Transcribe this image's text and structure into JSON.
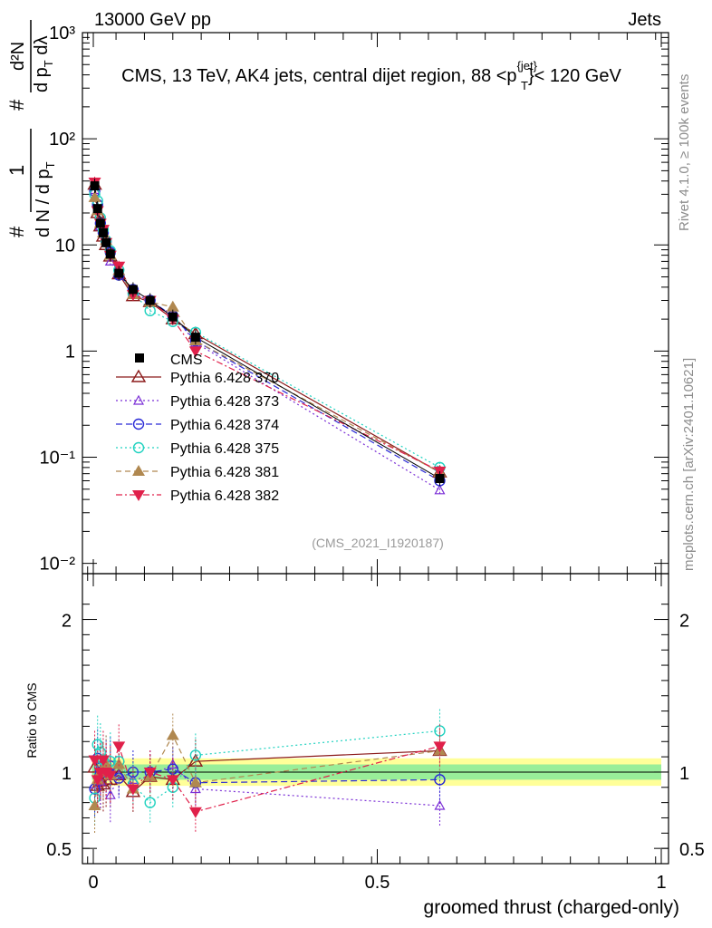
{
  "header": {
    "left": "13000 GeV pp",
    "right": "Jets"
  },
  "title": {
    "main": "CMS, 13 TeV, AK4 jets, central dijet region, 88 <p",
    "sup": "{jet}",
    "sub": "T",
    "tail": "}< 120 GeV"
  },
  "ylabel": {
    "num1": "1",
    "den1": "d N / d p",
    "den1sub": "T",
    "prefix": "#",
    "num2": "d²N",
    "den2": "d p",
    "den2sub": "T",
    "den2tail": " dλ",
    "hash2": "#"
  },
  "side": {
    "rivet": "Rivet 4.1.0, ≥ 100k events",
    "mcplots": "mcplots.cern.ch [arXiv:2401.10621]"
  },
  "analysis_ref": "(CMS_2021_I1920187)",
  "ratio_label": "Ratio to CMS",
  "xlabel": "groomed thrust (charged-only)",
  "chart_data": {
    "type": "scatter",
    "x": [
      0.0025,
      0.0075,
      0.0125,
      0.0175,
      0.0225,
      0.03,
      0.045,
      0.07,
      0.1,
      0.14,
      0.18,
      0.61
    ],
    "main": {
      "yscale": "log",
      "ylim": [
        0.008,
        1000
      ],
      "ytick_labels": [
        "10⁻²",
        "10⁻¹",
        "1",
        "10",
        "10²",
        "10³"
      ],
      "ytick_values": [
        0.01,
        0.1,
        1,
        10,
        100,
        1000
      ],
      "data": {
        "name": "CMS",
        "values": [
          36,
          22,
          16,
          13,
          10.5,
          8.2,
          5.4,
          3.8,
          3.0,
          2.1,
          1.35,
          0.063
        ]
      },
      "series": [
        {
          "name": "Pythia 6.428 370",
          "color": "#8b1a1a",
          "dash": "",
          "marker": "triangle-open",
          "values": [
            37,
            20,
            15,
            12,
            10,
            7.8,
            5.3,
            3.3,
            2.9,
            2.0,
            1.45,
            0.072
          ]
        },
        {
          "name": "Pythia 6.428 373",
          "color": "#7b2fd6",
          "dash": "2,3",
          "marker": "triangle-open-small",
          "values": [
            33,
            21,
            15,
            14,
            11,
            7.0,
            5.3,
            3.6,
            2.9,
            2.2,
            1.2,
            0.049
          ]
        },
        {
          "name": "Pythia 6.428 374",
          "color": "#2b2bd6",
          "dash": "7,4",
          "marker": "circle-open",
          "values": [
            32,
            24,
            16,
            13,
            10.7,
            8.5,
            5.2,
            3.8,
            3.0,
            2.15,
            1.25,
            0.06
          ]
        },
        {
          "name": "Pythia 6.428 375",
          "color": "#20d2c0",
          "dash": "2,3",
          "marker": "circle-open",
          "values": [
            30,
            26,
            18,
            14,
            11,
            8.8,
            5.8,
            3.5,
            2.4,
            1.9,
            1.5,
            0.08
          ]
        },
        {
          "name": "Pythia 6.428 381",
          "color": "#b08850",
          "dash": "6,4",
          "marker": "triangle-filled",
          "values": [
            28,
            21,
            16,
            13,
            11,
            8.0,
            5.7,
            3.4,
            2.9,
            2.6,
            1.25,
            0.072
          ]
        },
        {
          "name": "Pythia 6.428 382",
          "color": "#e0204a",
          "dash": "7,3,2,3",
          "marker": "triangle-down-filled",
          "values": [
            39,
            21,
            16,
            14,
            10.5,
            8.0,
            6.3,
            3.4,
            3.0,
            2.0,
            1.0,
            0.074
          ]
        }
      ]
    },
    "ratio": {
      "ylim": [
        0.4,
        2.3
      ],
      "ytick_labels": [
        "0.5",
        "1",
        "2"
      ],
      "ytick_values": [
        0.5,
        1,
        2
      ],
      "band_inner": 0.05,
      "band_outer": 0.09,
      "series_values": [
        [
          1.03,
          0.91,
          0.94,
          0.92,
          0.95,
          0.95,
          0.98,
          0.87,
          0.97,
          0.95,
          1.07,
          1.14
        ],
        [
          0.92,
          0.95,
          0.94,
          1.08,
          1.05,
          0.85,
          0.98,
          0.95,
          0.97,
          1.05,
          0.89,
          0.78
        ],
        [
          0.89,
          1.09,
          1.0,
          1.0,
          1.02,
          1.04,
          0.96,
          1.0,
          1.0,
          1.02,
          0.93,
          0.95
        ],
        [
          0.83,
          1.18,
          1.13,
          1.08,
          1.05,
          1.07,
          1.07,
          0.92,
          0.8,
          0.9,
          1.11,
          1.27
        ],
        [
          0.78,
          0.95,
          1.0,
          1.0,
          1.05,
          0.98,
          1.05,
          0.89,
          0.97,
          1.24,
          0.93,
          1.14
        ],
        [
          1.08,
          0.95,
          1.0,
          1.08,
          1.0,
          0.98,
          1.17,
          0.89,
          1.0,
          0.95,
          0.74,
          1.17
        ]
      ]
    },
    "xlim": [
      -0.02,
      1.0
    ],
    "xtick_labels": [
      "0",
      "0.5",
      "1"
    ],
    "xtick_values": [
      0,
      0.5,
      1
    ]
  }
}
